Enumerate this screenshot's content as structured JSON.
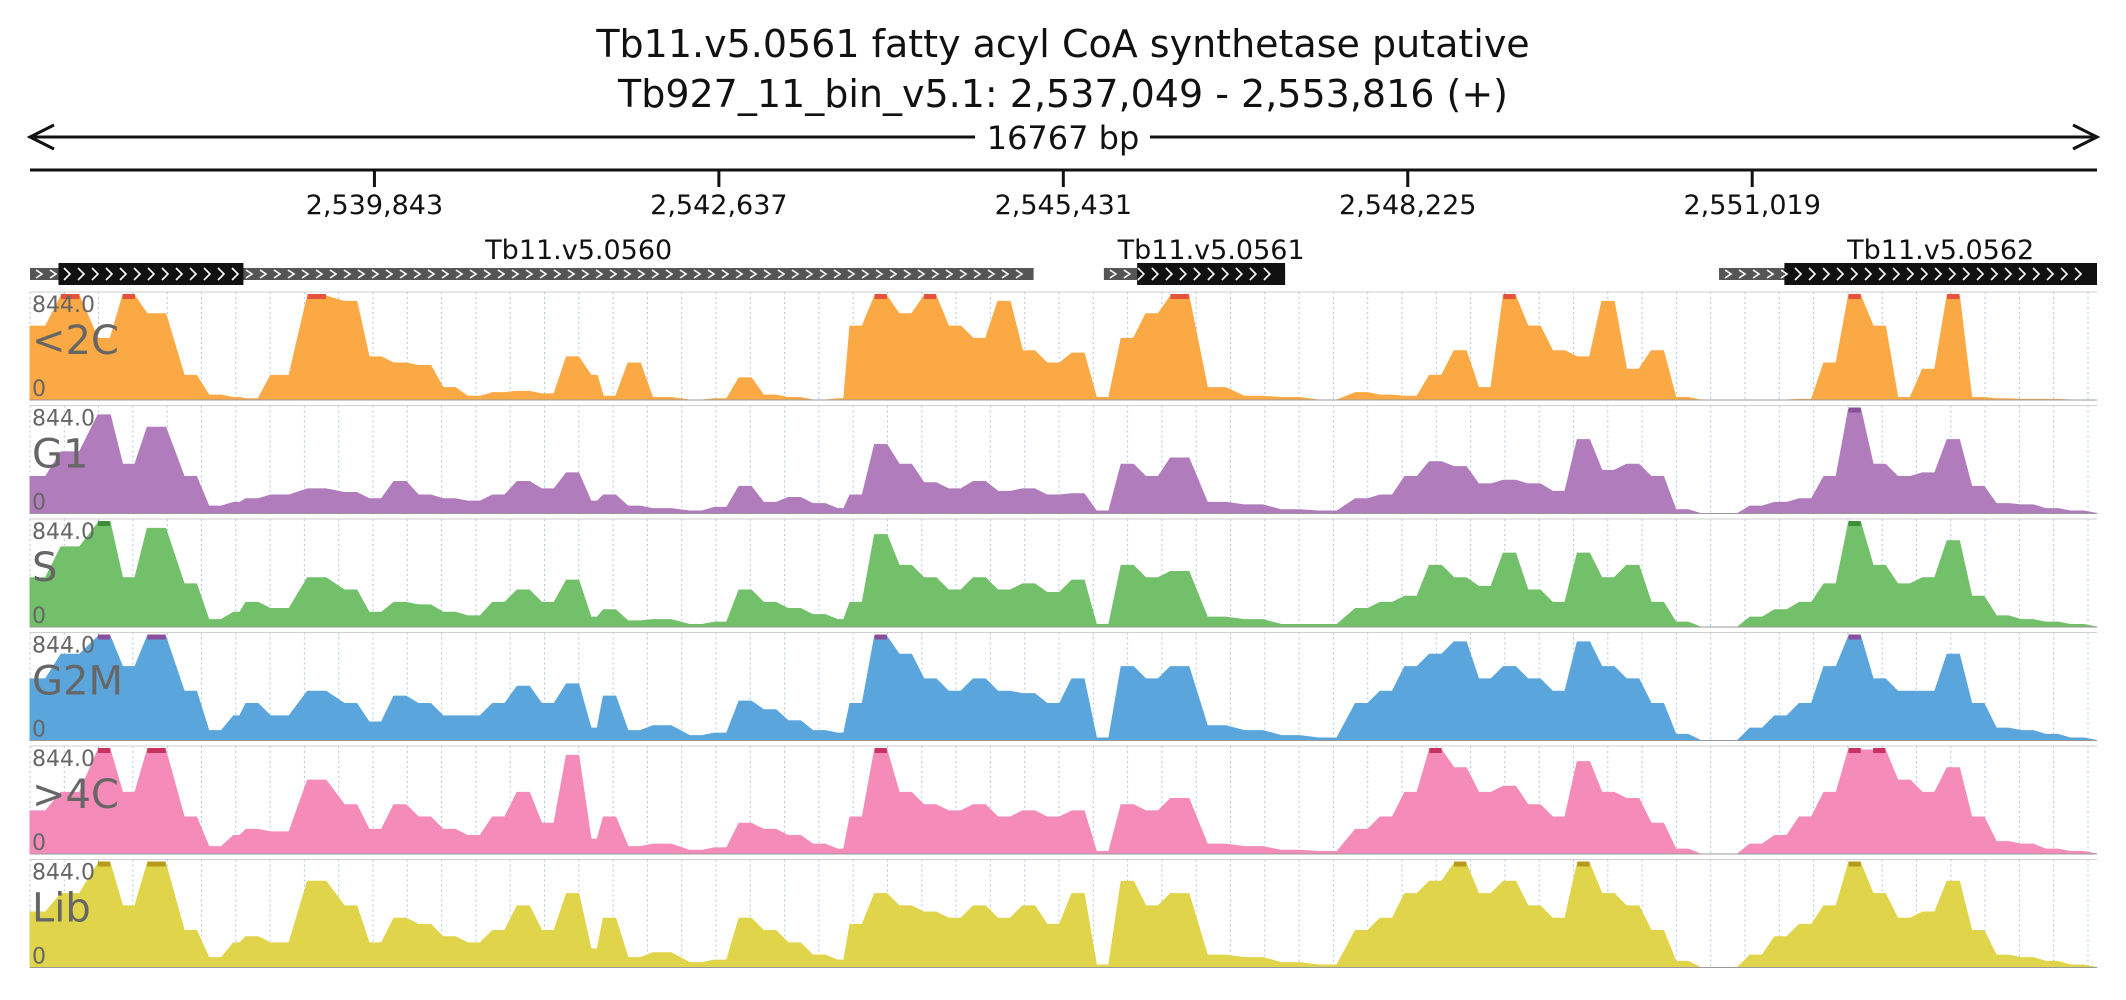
{
  "chart_data": {
    "type": "area",
    "title": "Tb11.v5.0561  fatty acyl CoA synthetase  putative",
    "subtitle": "Tb927_11_bin_v5.1: 2,537,049 - 2,553,816 (+)",
    "span_label": "16767 bp",
    "x_range": [
      2537049,
      2553816
    ],
    "x_ticks": [
      2539843,
      2542637,
      2545431,
      2548225,
      2551019
    ],
    "x_tick_labels": [
      "2,539,843",
      "2,542,637",
      "2,545,431",
      "2,548,225",
      "2,551,019"
    ],
    "ylim": [
      0,
      844.0
    ],
    "y_max_label": "844.0",
    "y_min_label": "0",
    "genes": [
      {
        "name": "Tb11.v5.0560",
        "utr_start": 2537049,
        "cds_start": 2537280,
        "cds_end": 2538780,
        "utr_end": 2545190
      },
      {
        "name": "Tb11.v5.0561",
        "utr_start": 2545760,
        "cds_start": 2546030,
        "cds_end": 2547230,
        "utr_end": 2547230
      },
      {
        "name": "Tb11.v5.0562",
        "utr_start": 2550750,
        "cds_start": 2551280,
        "cds_end": 2553816,
        "utr_end": 2553816
      }
    ],
    "series": [
      {
        "name": "<2C",
        "color": "#fba944",
        "peak_color": "#e5533d",
        "x": [
          2537049,
          2537300,
          2537600,
          2537800,
          2538000,
          2538300,
          2538500,
          2538700,
          2538800,
          2539000,
          2539300,
          2539600,
          2539800,
          2540000,
          2540200,
          2540400,
          2540600,
          2540800,
          2541000,
          2541200,
          2541400,
          2541600,
          2541700,
          2541900,
          2542100,
          2542400,
          2542600,
          2542800,
          2543000,
          2543200,
          2543400,
          2543600,
          2543700,
          2543900,
          2544100,
          2544300,
          2544500,
          2544700,
          2544900,
          2545100,
          2545300,
          2545500,
          2545700,
          2545900,
          2546100,
          2546300,
          2546600,
          2546900,
          2547200,
          2547500,
          2547800,
          2548000,
          2548200,
          2548400,
          2548600,
          2548800,
          2549000,
          2549200,
          2549400,
          2549600,
          2549800,
          2550000,
          2550200,
          2550400,
          2550600,
          2550800,
          2551000,
          2551200,
          2551400,
          2551600,
          2551800,
          2552000,
          2552200,
          2552400,
          2552600,
          2552800,
          2553000,
          2553200,
          2553400,
          2553600,
          2553816
        ],
        "values": [
          600,
          844,
          500,
          844,
          700,
          200,
          40,
          20,
          10,
          200,
          844,
          800,
          350,
          300,
          280,
          100,
          30,
          60,
          70,
          50,
          350,
          200,
          30,
          300,
          20,
          0,
          10,
          180,
          40,
          20,
          0,
          10,
          600,
          844,
          700,
          844,
          600,
          500,
          800,
          400,
          300,
          380,
          20,
          500,
          700,
          844,
          100,
          30,
          20,
          0,
          60,
          40,
          30,
          200,
          400,
          100,
          844,
          600,
          400,
          350,
          800,
          250,
          400,
          20,
          0,
          0,
          0,
          0,
          5,
          300,
          844,
          600,
          20,
          250,
          844,
          20,
          10,
          5,
          5,
          0,
          0
        ]
      },
      {
        "name": "G1",
        "color": "#b07cbc",
        "peak_color": "#8a4f9a",
        "x": [
          2537049,
          2537300,
          2537600,
          2537800,
          2538000,
          2538300,
          2538500,
          2538700,
          2538800,
          2539000,
          2539300,
          2539600,
          2539800,
          2540000,
          2540200,
          2540400,
          2540600,
          2540800,
          2541000,
          2541200,
          2541400,
          2541600,
          2541700,
          2541900,
          2542100,
          2542400,
          2542600,
          2542800,
          2543000,
          2543200,
          2543400,
          2543600,
          2543700,
          2543900,
          2544100,
          2544300,
          2544500,
          2544700,
          2544900,
          2545100,
          2545300,
          2545500,
          2545700,
          2545900,
          2546100,
          2546300,
          2546600,
          2546900,
          2547200,
          2547500,
          2547800,
          2548000,
          2548200,
          2548400,
          2548600,
          2548800,
          2549000,
          2549200,
          2549400,
          2549600,
          2549800,
          2550000,
          2550200,
          2550400,
          2550600,
          2550800,
          2551000,
          2551200,
          2551400,
          2551600,
          2551800,
          2552000,
          2552200,
          2552400,
          2552600,
          2552800,
          2553000,
          2553200,
          2553400,
          2553600,
          2553816
        ],
        "values": [
          300,
          500,
          800,
          400,
          700,
          300,
          60,
          90,
          120,
          150,
          200,
          170,
          120,
          260,
          150,
          120,
          100,
          150,
          260,
          200,
          330,
          100,
          150,
          60,
          40,
          20,
          50,
          220,
          90,
          130,
          80,
          40,
          150,
          560,
          400,
          250,
          200,
          260,
          180,
          200,
          150,
          160,
          20,
          400,
          300,
          450,
          90,
          70,
          30,
          20,
          120,
          150,
          300,
          420,
          380,
          240,
          270,
          240,
          180,
          600,
          350,
          400,
          300,
          30,
          0,
          0,
          60,
          90,
          120,
          300,
          844,
          400,
          300,
          330,
          600,
          220,
          80,
          70,
          40,
          20,
          0
        ]
      },
      {
        "name": "S",
        "color": "#73c06b",
        "peak_color": "#3f8f3a",
        "x": [
          2537049,
          2537300,
          2537600,
          2537800,
          2538000,
          2538300,
          2538500,
          2538700,
          2538800,
          2539000,
          2539300,
          2539600,
          2539800,
          2540000,
          2540200,
          2540400,
          2540600,
          2540800,
          2541000,
          2541200,
          2541400,
          2541600,
          2541700,
          2541900,
          2542100,
          2542400,
          2542600,
          2542800,
          2543000,
          2543200,
          2543400,
          2543600,
          2543700,
          2543900,
          2544100,
          2544300,
          2544500,
          2544700,
          2544900,
          2545100,
          2545300,
          2545500,
          2545700,
          2545900,
          2546100,
          2546300,
          2546600,
          2546900,
          2547200,
          2547500,
          2547800,
          2548000,
          2548200,
          2548400,
          2548600,
          2548800,
          2549000,
          2549200,
          2549400,
          2549600,
          2549800,
          2550000,
          2550200,
          2550400,
          2550600,
          2550800,
          2551000,
          2551200,
          2551400,
          2551600,
          2551800,
          2552000,
          2552200,
          2552400,
          2552600,
          2552800,
          2553000,
          2553200,
          2553400,
          2553600,
          2553816
        ],
        "values": [
          400,
          650,
          844,
          400,
          800,
          350,
          60,
          120,
          200,
          150,
          400,
          300,
          120,
          200,
          180,
          120,
          90,
          200,
          300,
          200,
          380,
          80,
          140,
          50,
          60,
          20,
          40,
          300,
          200,
          150,
          100,
          60,
          200,
          750,
          500,
          400,
          300,
          400,
          300,
          350,
          280,
          380,
          20,
          500,
          400,
          450,
          80,
          60,
          20,
          20,
          150,
          200,
          250,
          500,
          400,
          330,
          600,
          300,
          200,
          600,
          400,
          500,
          200,
          40,
          0,
          0,
          80,
          140,
          200,
          350,
          844,
          500,
          350,
          400,
          700,
          250,
          90,
          60,
          40,
          20,
          0
        ]
      },
      {
        "name": "G2M",
        "color": "#5aa6dc",
        "peak_color": "#8a4f9a",
        "x": [
          2537049,
          2537300,
          2537600,
          2537800,
          2538000,
          2538300,
          2538500,
          2538700,
          2538800,
          2539000,
          2539300,
          2539600,
          2539800,
          2540000,
          2540200,
          2540400,
          2540600,
          2540800,
          2541000,
          2541200,
          2541400,
          2541600,
          2541700,
          2541900,
          2542100,
          2542400,
          2542600,
          2542800,
          2543000,
          2543200,
          2543400,
          2543600,
          2543700,
          2543900,
          2544100,
          2544300,
          2544500,
          2544700,
          2544900,
          2545100,
          2545300,
          2545500,
          2545700,
          2545900,
          2546100,
          2546300,
          2546600,
          2546900,
          2547200,
          2547500,
          2547800,
          2548000,
          2548200,
          2548400,
          2548600,
          2548800,
          2549000,
          2549200,
          2549400,
          2549600,
          2549800,
          2550000,
          2550200,
          2550400,
          2550600,
          2550800,
          2551000,
          2551200,
          2551400,
          2551600,
          2551800,
          2552000,
          2552200,
          2552400,
          2552600,
          2552800,
          2553000,
          2553200,
          2553400,
          2553600,
          2553816
        ],
        "values": [
          500,
          700,
          844,
          600,
          844,
          400,
          80,
          200,
          300,
          200,
          400,
          300,
          150,
          360,
          300,
          200,
          200,
          300,
          440,
          300,
          460,
          100,
          360,
          80,
          120,
          40,
          60,
          320,
          250,
          160,
          80,
          60,
          300,
          844,
          700,
          500,
          400,
          500,
          400,
          380,
          300,
          500,
          20,
          600,
          500,
          600,
          120,
          80,
          40,
          20,
          300,
          400,
          600,
          700,
          800,
          500,
          600,
          500,
          400,
          800,
          600,
          500,
          300,
          50,
          0,
          0,
          100,
          200,
          300,
          600,
          844,
          500,
          400,
          400,
          700,
          300,
          100,
          80,
          50,
          20,
          0
        ]
      },
      {
        "name": ">4C",
        "color": "#f48bb8",
        "peak_color": "#c8325f",
        "x": [
          2537049,
          2537300,
          2537600,
          2537800,
          2538000,
          2538300,
          2538500,
          2538700,
          2538800,
          2539000,
          2539300,
          2539600,
          2539800,
          2540000,
          2540200,
          2540400,
          2540600,
          2540800,
          2541000,
          2541200,
          2541400,
          2541600,
          2541700,
          2541900,
          2542100,
          2542400,
          2542600,
          2542800,
          2543000,
          2543200,
          2543400,
          2543600,
          2543700,
          2543900,
          2544100,
          2544300,
          2544500,
          2544700,
          2544900,
          2545100,
          2545300,
          2545500,
          2545700,
          2545900,
          2546100,
          2546300,
          2546600,
          2546900,
          2547200,
          2547500,
          2547800,
          2548000,
          2548200,
          2548400,
          2548600,
          2548800,
          2549000,
          2549200,
          2549400,
          2549600,
          2549800,
          2550000,
          2550200,
          2550400,
          2550600,
          2550800,
          2551000,
          2551200,
          2551400,
          2551600,
          2551800,
          2552000,
          2552200,
          2552400,
          2552600,
          2552800,
          2553000,
          2553200,
          2553400,
          2553600,
          2553816
        ],
        "values": [
          350,
          500,
          844,
          500,
          844,
          300,
          60,
          150,
          200,
          180,
          600,
          400,
          200,
          400,
          300,
          200,
          150,
          300,
          500,
          250,
          800,
          120,
          300,
          60,
          80,
          30,
          50,
          250,
          200,
          150,
          80,
          40,
          300,
          844,
          500,
          400,
          350,
          400,
          300,
          350,
          300,
          350,
          20,
          400,
          350,
          450,
          80,
          60,
          30,
          20,
          200,
          300,
          500,
          844,
          700,
          500,
          550,
          400,
          300,
          750,
          500,
          450,
          250,
          40,
          0,
          0,
          80,
          150,
          300,
          500,
          844,
          844,
          600,
          500,
          700,
          300,
          100,
          80,
          40,
          20,
          0
        ]
      },
      {
        "name": "Lib",
        "color": "#e0d44a",
        "peak_color": "#b59a1c",
        "x": [
          2537049,
          2537300,
          2537600,
          2537800,
          2538000,
          2538300,
          2538500,
          2538700,
          2538800,
          2539000,
          2539300,
          2539600,
          2539800,
          2540000,
          2540200,
          2540400,
          2540600,
          2540800,
          2541000,
          2541200,
          2541400,
          2541600,
          2541700,
          2541900,
          2542100,
          2542400,
          2542600,
          2542800,
          2543000,
          2543200,
          2543400,
          2543600,
          2543700,
          2543900,
          2544100,
          2544300,
          2544500,
          2544700,
          2544900,
          2545100,
          2545300,
          2545500,
          2545700,
          2545900,
          2546100,
          2546300,
          2546600,
          2546900,
          2547200,
          2547500,
          2547800,
          2548000,
          2548200,
          2548400,
          2548600,
          2548800,
          2549000,
          2549200,
          2549400,
          2549600,
          2549800,
          2550000,
          2550200,
          2550400,
          2550600,
          2550800,
          2551000,
          2551200,
          2551400,
          2551600,
          2551800,
          2552000,
          2552200,
          2552400,
          2552600,
          2552800,
          2553000,
          2553200,
          2553400,
          2553600,
          2553816
        ],
        "values": [
          450,
          600,
          844,
          500,
          844,
          300,
          80,
          200,
          250,
          200,
          700,
          500,
          200,
          400,
          350,
          250,
          200,
          300,
          500,
          300,
          600,
          150,
          400,
          80,
          120,
          40,
          60,
          400,
          300,
          200,
          100,
          60,
          350,
          600,
          500,
          450,
          400,
          500,
          400,
          500,
          350,
          600,
          20,
          700,
          500,
          600,
          100,
          80,
          40,
          20,
          300,
          400,
          600,
          700,
          844,
          600,
          700,
          500,
          400,
          844,
          600,
          500,
          300,
          50,
          0,
          0,
          100,
          250,
          350,
          500,
          844,
          600,
          400,
          450,
          700,
          300,
          100,
          80,
          50,
          20,
          0
        ]
      }
    ]
  }
}
